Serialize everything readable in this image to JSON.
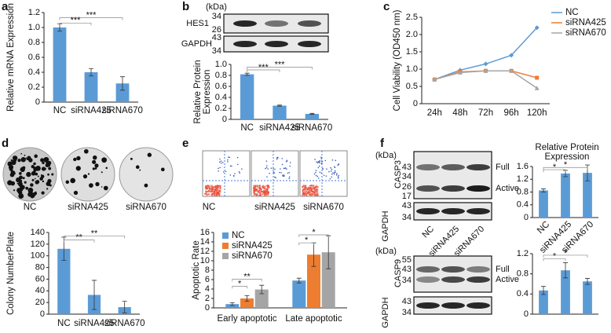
{
  "chart_data": [
    {
      "type": "bar",
      "panel": "a",
      "ylabel": "Relative mRNA Expression",
      "categories": [
        "NC",
        "siRNA425",
        "siRNA670"
      ],
      "values": [
        1.0,
        0.4,
        0.25
      ],
      "errors": [
        0.05,
        0.05,
        0.09
      ],
      "color": "#5b9bd5",
      "ylim": [
        0,
        1.2
      ],
      "yticks": [
        0,
        0.2,
        0.4,
        0.6,
        0.8,
        {
          "value": 1,
          "label": "1.0"
        },
        1.2
      ],
      "significance": [
        "***",
        "***"
      ]
    },
    {
      "type": "bar",
      "panel": "b",
      "ylabel": "Relative Protein Expression",
      "categories": [
        "NC",
        "siRNA425",
        "siRNA670"
      ],
      "values": [
        0.82,
        0.25,
        0.1
      ],
      "errors": [
        0.02,
        0.01,
        0.01
      ],
      "color": "#5b9bd5",
      "ylim": [
        0,
        1.0
      ],
      "yticks": [
        0,
        0.2,
        0.4,
        0.6,
        0.8,
        {
          "value": 1,
          "label": "1.0"
        }
      ],
      "significance": [
        "***",
        "***"
      ]
    },
    {
      "type": "line",
      "panel": "c",
      "ylabel": "Cell Viability (OD450 nm)",
      "categories": [
        "24h",
        "48h",
        "72h",
        "96h",
        "120h"
      ],
      "series": [
        {
          "name": "NC",
          "color": "#5b9bd5",
          "values": [
            0.7,
            0.97,
            1.15,
            1.4,
            2.2
          ]
        },
        {
          "name": "siRNA425",
          "color": "#ed7d31",
          "values": [
            0.7,
            0.92,
            0.95,
            0.95,
            0.75
          ]
        },
        {
          "name": "siRNA670",
          "color": "#a5a5a5",
          "values": [
            0.7,
            0.9,
            0.95,
            0.95,
            0.45
          ]
        }
      ],
      "ylim": [
        0,
        2.5
      ],
      "yticks": [
        0,
        0.5,
        {
          "value": 1,
          "label": "1.0"
        },
        1.5,
        {
          "value": 2,
          "label": "2.0"
        },
        2.5
      ]
    },
    {
      "type": "bar",
      "panel": "d",
      "ylabel": "Colony NumberPlate",
      "image_labels": [
        "NC",
        "siRNA425",
        "siRNA670"
      ],
      "categories": [
        "NC",
        "siRNA425",
        "siRNA670"
      ],
      "values": [
        112,
        33,
        12
      ],
      "errors": [
        20,
        25,
        10
      ],
      "color": "#5b9bd5",
      "ylim": [
        0,
        140
      ],
      "yticks": [
        0,
        20,
        40,
        60,
        80,
        100,
        120,
        140
      ],
      "significance": [
        "**",
        "**"
      ]
    },
    {
      "type": "bar",
      "panel": "e",
      "ylabel": "Apoptotic Rate",
      "image_labels": [
        "NC",
        "siRNA425",
        "siRNA670"
      ],
      "categories": [
        "Early apoptotic",
        "Late apoptotic"
      ],
      "series": [
        {
          "name": "NC",
          "color": "#5b9bd5",
          "values": [
            0.8,
            5.8
          ],
          "errors": [
            0.3,
            0.5
          ]
        },
        {
          "name": "siRNA425",
          "color": "#ed7d31",
          "values": [
            2.0,
            11.3
          ],
          "errors": [
            0.6,
            2.5
          ]
        },
        {
          "name": "siRNA670",
          "color": "#a5a5a5",
          "values": [
            3.9,
            11.8
          ],
          "errors": [
            0.9,
            3.5
          ]
        }
      ],
      "ylim": [
        0,
        16
      ],
      "yticks": [
        0,
        2,
        4,
        6,
        8,
        10,
        12,
        14,
        16
      ],
      "significance": [
        "*",
        "**",
        "*",
        "*"
      ]
    },
    {
      "type": "bar",
      "panel": "f",
      "title": "Relative Protein Expression",
      "categories": [
        "NC",
        "siRNA425",
        "siRNA670"
      ],
      "values": [
        0.85,
        1.38,
        1.4
      ],
      "errors": [
        0.05,
        0.1,
        0.25
      ],
      "color": "#5b9bd5",
      "ylim": [
        0,
        1.6
      ],
      "yticks": [
        0,
        0.4,
        0.8,
        1.2,
        1.6
      ],
      "significance": [
        "*",
        "*"
      ]
    },
    {
      "type": "bar",
      "values": [
        0.47,
        0.87,
        0.65
      ],
      "errors": [
        0.08,
        0.15,
        0.06
      ],
      "color": "#5b9bd5",
      "ylim": [
        0,
        1.2
      ],
      "yticks": [
        0,
        0.4,
        0.8,
        1.2
      ],
      "significance": [
        "*",
        "*"
      ]
    }
  ],
  "blots": [
    {
      "unit": "(kDa)",
      "rows": [
        {
          "label": "HES1",
          "markers": [
            34,
            26
          ]
        },
        {
          "label": "GAPDH",
          "markers": [
            43,
            34
          ]
        }
      ]
    },
    {
      "unit": "(kDa)",
      "lane_labels": [
        "NC",
        "siRNA425",
        "siRNA670"
      ],
      "rows": [
        {
          "label": "CASP3",
          "markers": [
            43,
            34,
            26,
            17
          ],
          "bands": [
            "Full",
            "Active"
          ]
        },
        {
          "label": "GAPDH",
          "markers": [
            43,
            34
          ]
        }
      ]
    },
    {
      "unit": "(kDa)",
      "rows": [
        {
          "label": "CASP9",
          "markers": [
            55,
            43,
            34
          ],
          "bands": [
            "Full",
            "Active"
          ]
        },
        {
          "label": "GAPDH",
          "markers": [
            43,
            34
          ]
        }
      ]
    }
  ]
}
